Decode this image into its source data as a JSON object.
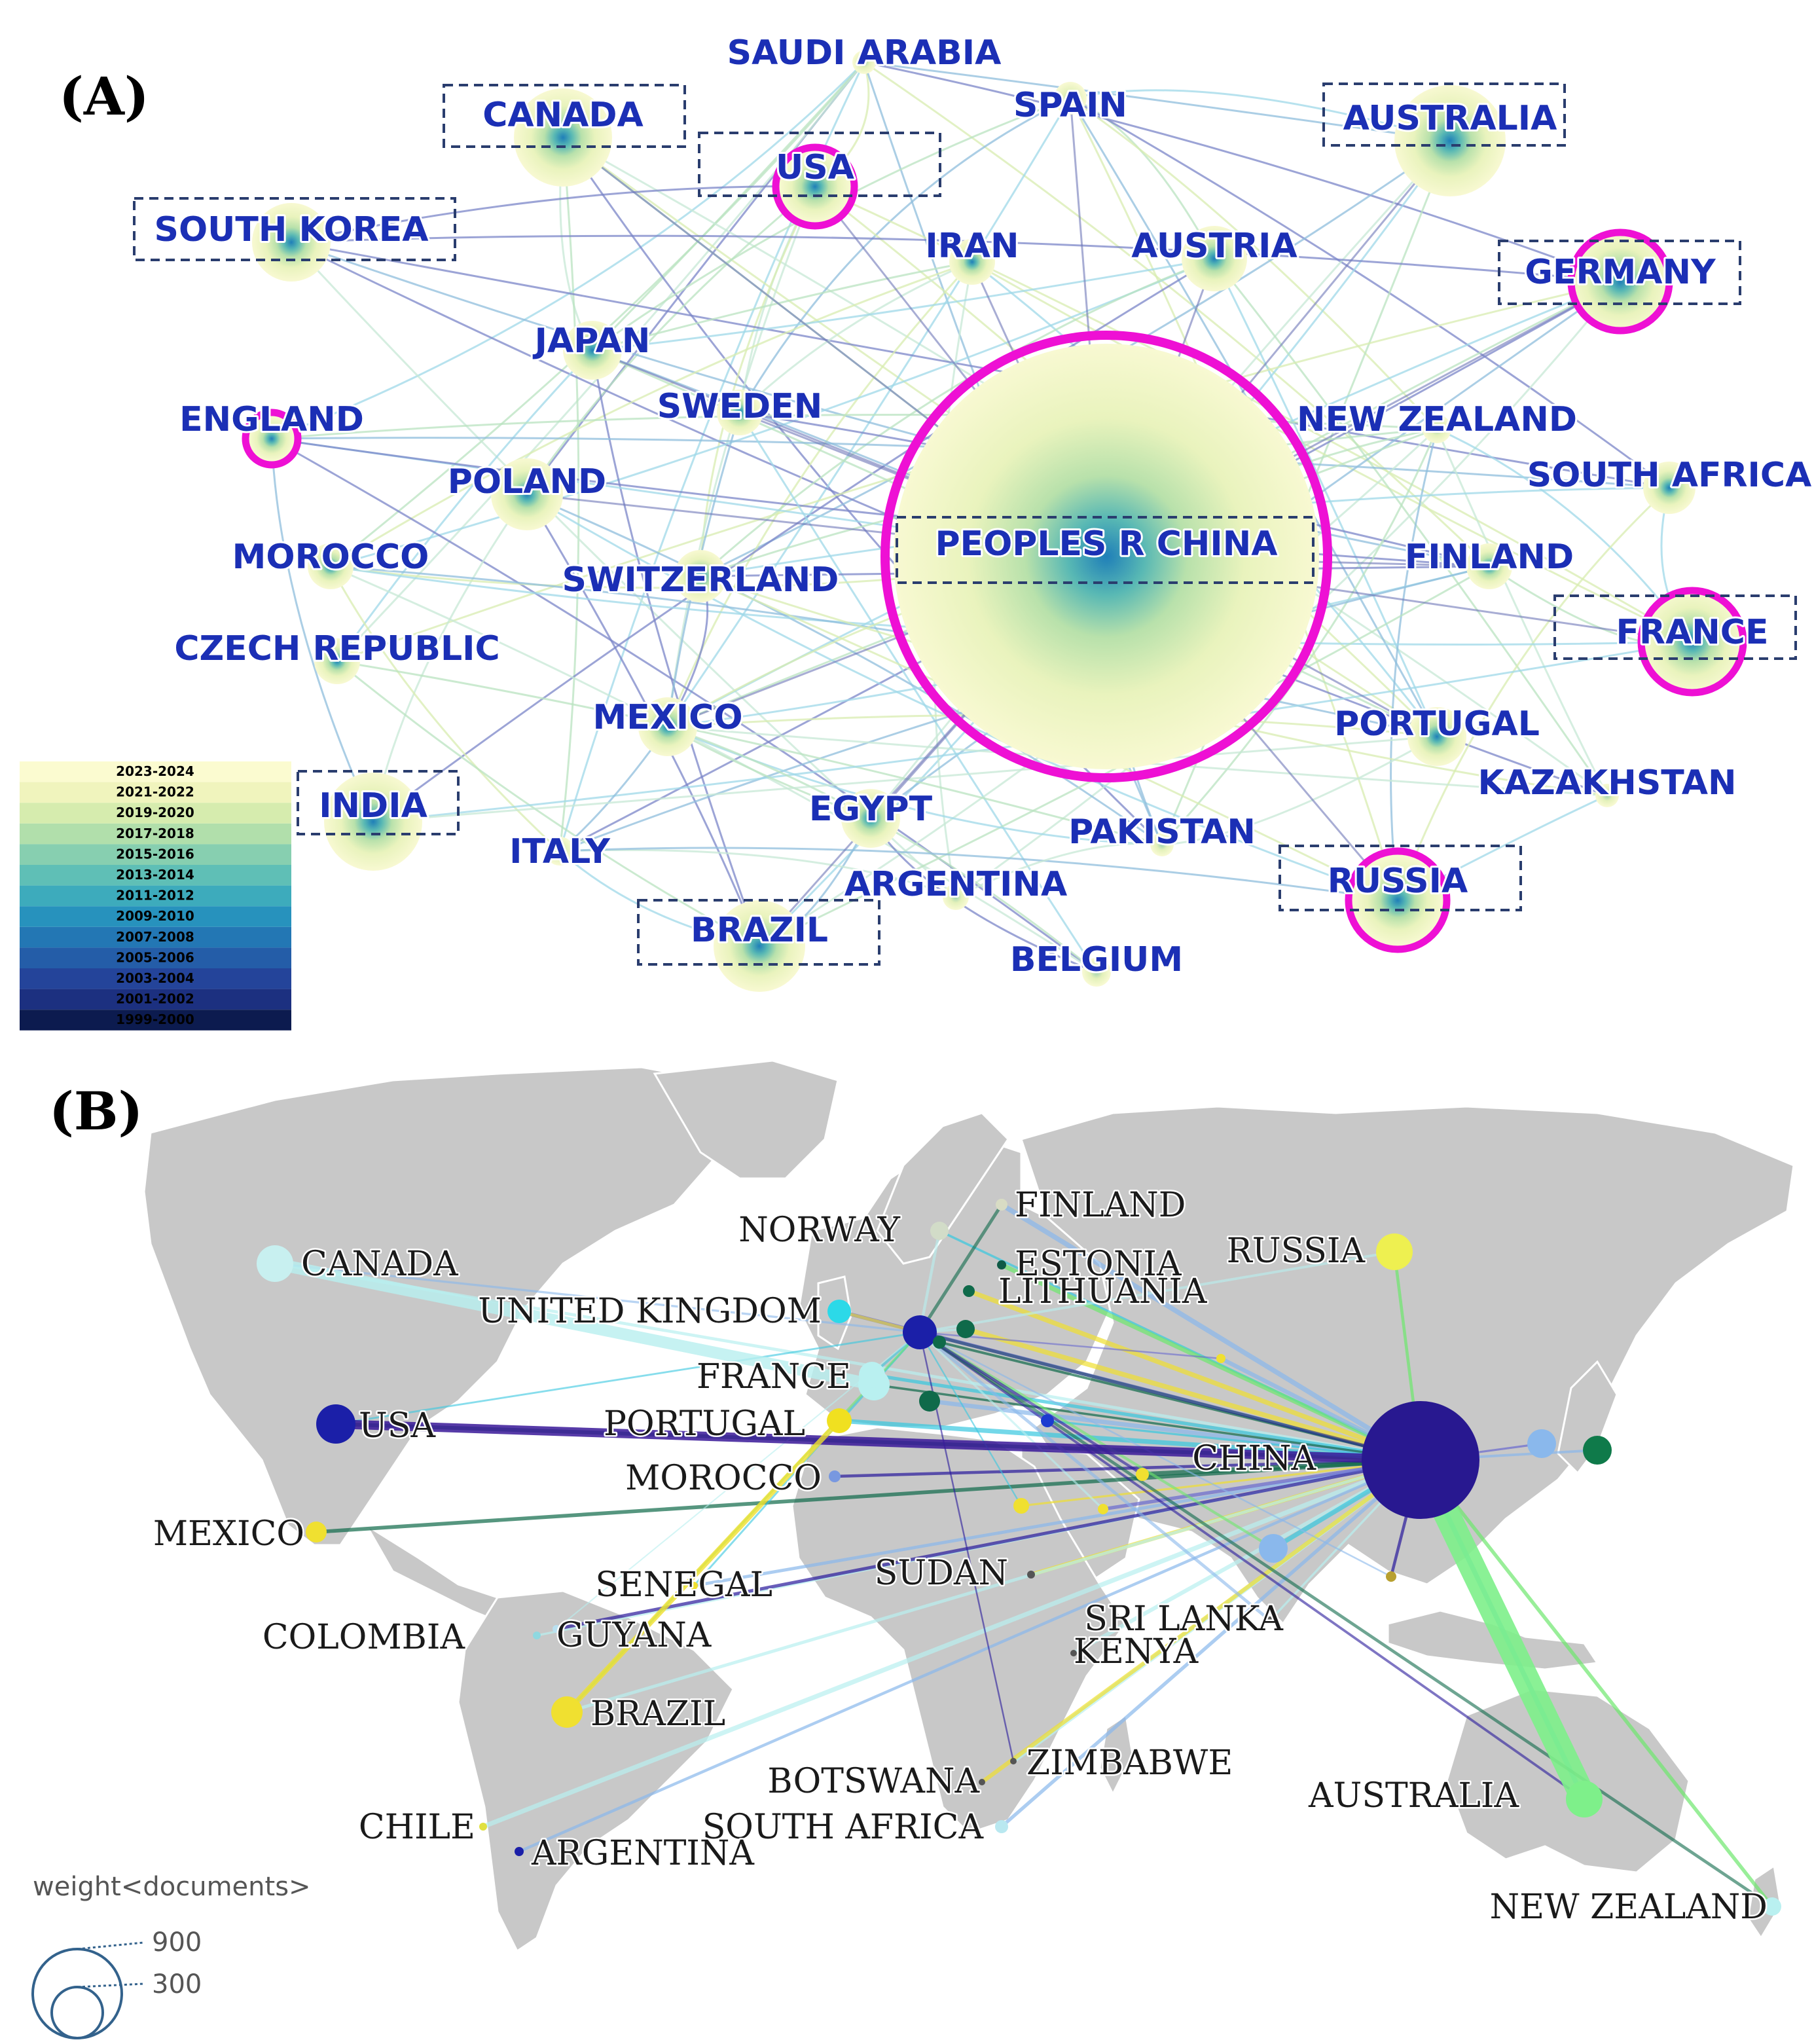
{
  "panel_a": {
    "label": "(A)",
    "nodes": [
      {
        "name": "SAUDI ARABIA",
        "boxed": false,
        "centrality_ring": false
      },
      {
        "name": "CANADA",
        "boxed": true,
        "centrality_ring": false
      },
      {
        "name": "SPAIN",
        "boxed": false,
        "centrality_ring": false
      },
      {
        "name": "AUSTRALIA",
        "boxed": true,
        "centrality_ring": false
      },
      {
        "name": "USA",
        "boxed": true,
        "centrality_ring": true
      },
      {
        "name": "SOUTH KOREA",
        "boxed": true,
        "centrality_ring": false
      },
      {
        "name": "IRAN",
        "boxed": false,
        "centrality_ring": false
      },
      {
        "name": "AUSTRIA",
        "boxed": false,
        "centrality_ring": false
      },
      {
        "name": "GERMANY",
        "boxed": true,
        "centrality_ring": true
      },
      {
        "name": "JAPAN",
        "boxed": false,
        "centrality_ring": false
      },
      {
        "name": "ENGLAND",
        "boxed": false,
        "centrality_ring": true
      },
      {
        "name": "SWEDEN",
        "boxed": false,
        "centrality_ring": false
      },
      {
        "name": "NEW ZEALAND",
        "boxed": false,
        "centrality_ring": false
      },
      {
        "name": "POLAND",
        "boxed": false,
        "centrality_ring": false
      },
      {
        "name": "SOUTH AFRICA",
        "boxed": false,
        "centrality_ring": false
      },
      {
        "name": "MOROCCO",
        "boxed": false,
        "centrality_ring": false
      },
      {
        "name": "PEOPLES R CHINA",
        "boxed": true,
        "centrality_ring": true
      },
      {
        "name": "SWITZERLAND",
        "boxed": false,
        "centrality_ring": false
      },
      {
        "name": "FINLAND",
        "boxed": false,
        "centrality_ring": false
      },
      {
        "name": "CZECH REPUBLIC",
        "boxed": false,
        "centrality_ring": false
      },
      {
        "name": "FRANCE",
        "boxed": true,
        "centrality_ring": true
      },
      {
        "name": "MEXICO",
        "boxed": false,
        "centrality_ring": false
      },
      {
        "name": "PORTUGAL",
        "boxed": false,
        "centrality_ring": false
      },
      {
        "name": "KAZAKHSTAN",
        "boxed": false,
        "centrality_ring": false
      },
      {
        "name": "INDIA",
        "boxed": true,
        "centrality_ring": false
      },
      {
        "name": "EGYPT",
        "boxed": false,
        "centrality_ring": false
      },
      {
        "name": "ITALY",
        "boxed": false,
        "centrality_ring": false
      },
      {
        "name": "PAKISTAN",
        "boxed": false,
        "centrality_ring": false
      },
      {
        "name": "ARGENTINA",
        "boxed": false,
        "centrality_ring": false
      },
      {
        "name": "RUSSIA",
        "boxed": true,
        "centrality_ring": true
      },
      {
        "name": "BRAZIL",
        "boxed": true,
        "centrality_ring": false
      },
      {
        "name": "BELGIUM",
        "boxed": false,
        "centrality_ring": false
      }
    ],
    "legend": [
      {
        "label": "2023-2024",
        "color": "#fbfbd0"
      },
      {
        "label": "2021-2022",
        "color": "#f0f4bd"
      },
      {
        "label": "2019-2020",
        "color": "#d6ecae"
      },
      {
        "label": "2017-2018",
        "color": "#b1dfab"
      },
      {
        "label": "2015-2016",
        "color": "#87cfb0"
      },
      {
        "label": "2013-2014",
        "color": "#5fbfb6"
      },
      {
        "label": "2011-2012",
        "color": "#3dabbc"
      },
      {
        "label": "2009-2010",
        "color": "#2792bd"
      },
      {
        "label": "2007-2008",
        "color": "#2377b4"
      },
      {
        "label": "2005-2006",
        "color": "#245da8"
      },
      {
        "label": "2003-2004",
        "color": "#24449a"
      },
      {
        "label": "2001-2002",
        "color": "#1c3080"
      },
      {
        "label": "1999-2000",
        "color": "#0c1b4f"
      }
    ]
  },
  "panel_b": {
    "label": "(B)",
    "countries": [
      "FINLAND",
      "NORWAY",
      "ESTONIA",
      "RUSSIA",
      "CANADA",
      "LITHUANIA",
      "UNITED KINGDOM",
      "FRANCE",
      "USA",
      "PORTUGAL",
      "CHINA",
      "MOROCCO",
      "MEXICO",
      "SUDAN",
      "SENEGAL",
      "COLOMBIA",
      "GUYANA",
      "SRI LANKA",
      "KENYA",
      "BRAZIL",
      "ZIMBABWE",
      "BOTSWANA",
      "AUSTRALIA",
      "CHILE",
      "SOUTH AFRICA",
      "ARGENTINA",
      "NEW ZEALAND"
    ],
    "weight_legend": {
      "title": "weight<documents>",
      "values": [
        "900",
        "300"
      ]
    }
  }
}
